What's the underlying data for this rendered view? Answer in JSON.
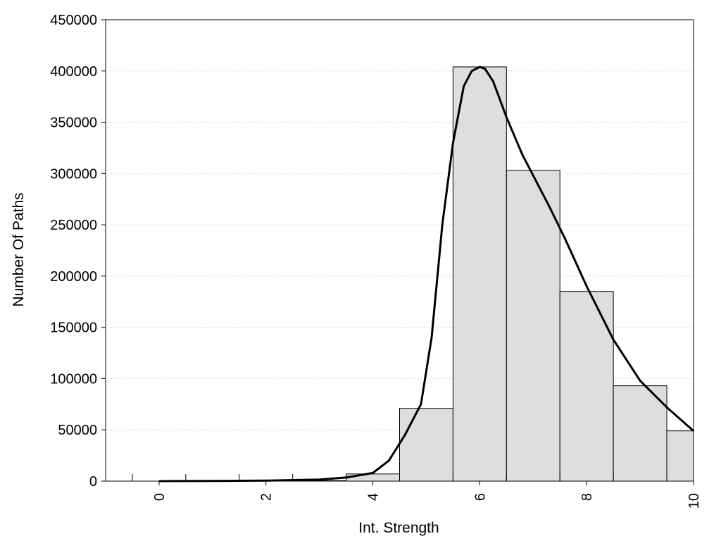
{
  "chart_data": {
    "type": "bar",
    "xlabel": "Int. Strength",
    "ylabel": "Number Of Paths",
    "xlim": [
      -1,
      10
    ],
    "ylim": [
      0,
      450000
    ],
    "x_ticks": [
      0,
      2,
      4,
      6,
      8,
      10
    ],
    "y_ticks": [
      0,
      50000,
      100000,
      150000,
      200000,
      250000,
      300000,
      350000,
      400000,
      450000
    ],
    "grid": "horizontal dotted",
    "bars": [
      {
        "x_start": -0.5,
        "x_end": 0.5,
        "value": 0
      },
      {
        "x_start": 0.5,
        "x_end": 1.5,
        "value": 0
      },
      {
        "x_start": 1.5,
        "x_end": 2.5,
        "value": 0
      },
      {
        "x_start": 2.5,
        "x_end": 3.5,
        "value": 500
      },
      {
        "x_start": 3.5,
        "x_end": 4.5,
        "value": 7000
      },
      {
        "x_start": 4.5,
        "x_end": 5.5,
        "value": 71000
      },
      {
        "x_start": 5.5,
        "x_end": 6.5,
        "value": 404000
      },
      {
        "x_start": 6.5,
        "x_end": 7.5,
        "value": 303000
      },
      {
        "x_start": 7.5,
        "x_end": 8.5,
        "value": 185000
      },
      {
        "x_start": 8.5,
        "x_end": 9.5,
        "value": 93000
      },
      {
        "x_start": 9.5,
        "x_end": 10,
        "value": 49000
      }
    ],
    "curve": {
      "x": [
        0,
        1,
        2,
        3,
        3.5,
        4,
        4.3,
        4.6,
        4.9,
        5.1,
        5.3,
        5.5,
        5.7,
        5.85,
        6.0,
        6.1,
        6.25,
        6.5,
        6.8,
        7.0,
        7.3,
        7.6,
        8.0,
        8.5,
        9.0,
        9.5,
        10.0
      ],
      "y": [
        0,
        200,
        500,
        1500,
        3500,
        8000,
        20000,
        45000,
        75000,
        140000,
        250000,
        330000,
        385000,
        400000,
        404000,
        402000,
        390000,
        355000,
        318000,
        298000,
        268000,
        236000,
        190000,
        138000,
        98000,
        72000,
        49000
      ]
    }
  }
}
